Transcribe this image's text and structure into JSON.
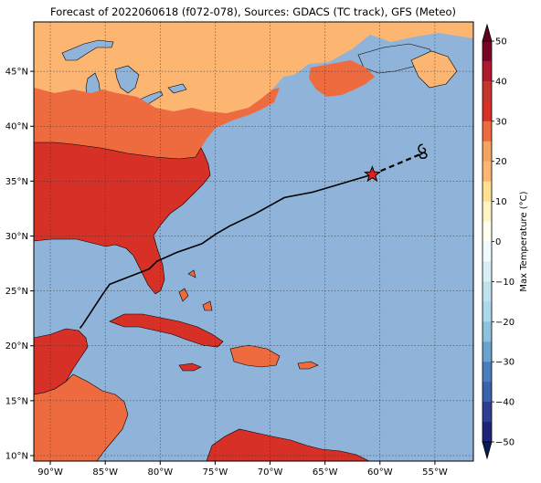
{
  "title": "Forecast of 2022060618 (f072-078), Sources: GDACS (TC track), GFS (Meteo)",
  "map": {
    "lon_range": [
      -91.5,
      -51.5
    ],
    "lat_range": [
      9.5,
      49.5
    ],
    "lon_ticks": [
      {
        "value": -90,
        "label": "90°W"
      },
      {
        "value": -85,
        "label": "85°W"
      },
      {
        "value": -80,
        "label": "80°W"
      },
      {
        "value": -75,
        "label": "75°W"
      },
      {
        "value": -70,
        "label": "70°W"
      },
      {
        "value": -65,
        "label": "65°W"
      },
      {
        "value": -60,
        "label": "60°W"
      },
      {
        "value": -55,
        "label": "55°W"
      }
    ],
    "lat_ticks": [
      {
        "value": 10,
        "label": "10°N"
      },
      {
        "value": 15,
        "label": "15°N"
      },
      {
        "value": 20,
        "label": "20°N"
      },
      {
        "value": 25,
        "label": "25°N"
      },
      {
        "value": 30,
        "label": "30°N"
      },
      {
        "value": 35,
        "label": "35°N"
      },
      {
        "value": 40,
        "label": "40°N"
      },
      {
        "value": 45,
        "label": "45°N"
      }
    ],
    "grid": true,
    "ocean_color": "#8fb3d9"
  },
  "track": {
    "past": [
      [
        -87.3,
        21.6
      ],
      [
        -87.0,
        22.0
      ],
      [
        -85.3,
        24.6
      ],
      [
        -84.6,
        25.6
      ],
      [
        -81.0,
        27.0
      ],
      [
        -80.3,
        27.7
      ],
      [
        -78.5,
        28.5
      ],
      [
        -76.2,
        29.3
      ],
      [
        -74.9,
        30.2
      ],
      [
        -73.7,
        30.9
      ],
      [
        -71.4,
        32.0
      ],
      [
        -68.7,
        33.5
      ],
      [
        -66.1,
        34.0
      ],
      [
        -60.7,
        35.6
      ]
    ],
    "forecast": [
      [
        -60.7,
        35.6
      ],
      [
        -56.2,
        37.5
      ]
    ],
    "current_position": [
      -60.7,
      35.6
    ],
    "forecast_position": [
      -56.2,
      37.5
    ],
    "storm_symbol": "storm-symbol-icon"
  },
  "colorbar": {
    "label": "Max Temperature (°C)",
    "min": -50,
    "max": 50,
    "ticks": [
      {
        "value": 50,
        "label": "50"
      },
      {
        "value": 40,
        "label": "40"
      },
      {
        "value": 30,
        "label": "30"
      },
      {
        "value": 20,
        "label": "20"
      },
      {
        "value": 10,
        "label": "10"
      },
      {
        "value": 0,
        "label": "0"
      },
      {
        "value": -10,
        "label": "−10"
      },
      {
        "value": -20,
        "label": "−20"
      },
      {
        "value": -30,
        "label": "−30"
      },
      {
        "value": -40,
        "label": "−40"
      },
      {
        "value": -50,
        "label": "−50"
      }
    ],
    "levels": [
      {
        "from": 45,
        "to": 50,
        "color": "#790525"
      },
      {
        "from": 40,
        "to": 45,
        "color": "#b2182b"
      },
      {
        "from": 35,
        "to": 40,
        "color": "#c7342e"
      },
      {
        "from": 30,
        "to": 35,
        "color": "#d73027"
      },
      {
        "from": 25,
        "to": 30,
        "color": "#ee6a3f"
      },
      {
        "from": 20,
        "to": 25,
        "color": "#f4a45e"
      },
      {
        "from": 15,
        "to": 20,
        "color": "#fcb672"
      },
      {
        "from": 10,
        "to": 15,
        "color": "#fee090"
      },
      {
        "from": 5,
        "to": 10,
        "color": "#fff5c4"
      },
      {
        "from": 0,
        "to": 5,
        "color": "#fffff0"
      },
      {
        "from": -5,
        "to": 0,
        "color": "#f0fbff"
      },
      {
        "from": -10,
        "to": -5,
        "color": "#d9eff6"
      },
      {
        "from": -15,
        "to": -10,
        "color": "#c0e2ef"
      },
      {
        "from": -20,
        "to": -15,
        "color": "#abd9e9"
      },
      {
        "from": -25,
        "to": -20,
        "color": "#8dc1dd"
      },
      {
        "from": -30,
        "to": -25,
        "color": "#6ba3cf"
      },
      {
        "from": -35,
        "to": -30,
        "color": "#4a7fbf"
      },
      {
        "from": -40,
        "to": -35,
        "color": "#3b62ac"
      },
      {
        "from": -45,
        "to": -40,
        "color": "#2c3f94"
      },
      {
        "from": -50,
        "to": -45,
        "color": "#1e2578"
      }
    ],
    "over_color": "#67001f",
    "under_color": "#081d58"
  }
}
